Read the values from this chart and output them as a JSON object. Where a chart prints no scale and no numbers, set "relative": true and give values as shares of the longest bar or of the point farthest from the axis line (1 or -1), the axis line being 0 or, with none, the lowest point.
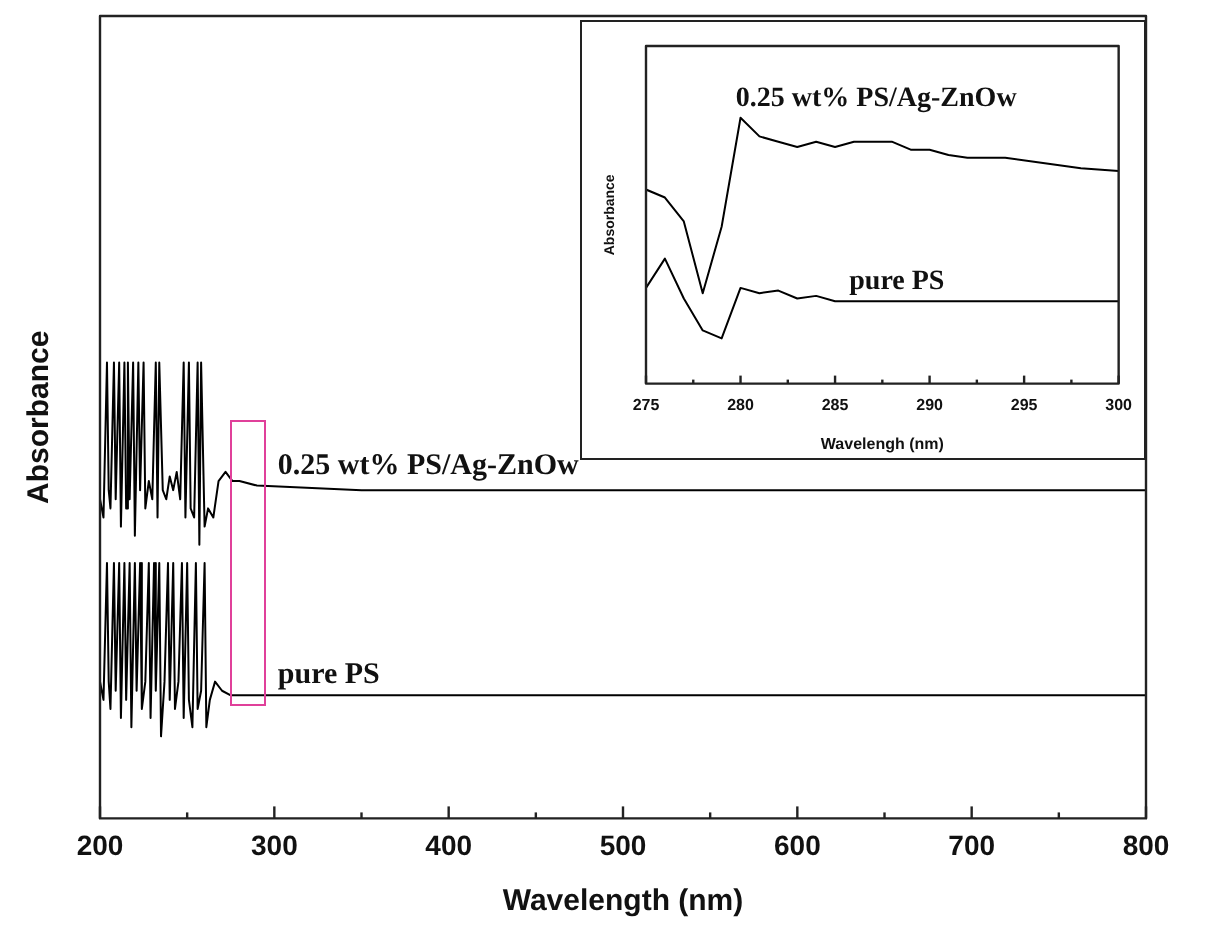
{
  "chart_data": [
    {
      "type": "line",
      "xlabel": "Wavelength (nm)",
      "ylabel": "Absorbance",
      "relative": true,
      "tick_labels": "x",
      "grid": false,
      "legend": false,
      "line_style": "solid",
      "xlim": [
        200,
        800
      ],
      "xticks": [
        200,
        {
          "value": 250,
          "label": null
        },
        300,
        {
          "value": 350,
          "label": null
        },
        400,
        {
          "value": 450,
          "label": null
        },
        500,
        {
          "value": 550,
          "label": null
        },
        600,
        {
          "value": 650,
          "label": null
        },
        700,
        {
          "value": 750,
          "label": null
        },
        800
      ],
      "series": [
        {
          "name": "0.25 wt% PS/Ag-ZnOw",
          "color": "#000000",
          "x": [
            200,
            202,
            204,
            205,
            206,
            208,
            209,
            211,
            212,
            214,
            215,
            216,
            217,
            219,
            220,
            222,
            223,
            225,
            226,
            228,
            230,
            232,
            233,
            234,
            236,
            238,
            240,
            242,
            244,
            246,
            248,
            249,
            251,
            252,
            254,
            256,
            257,
            258,
            260,
            262,
            265,
            268,
            272,
            276,
            280,
            290,
            350,
            450,
            600,
            800
          ],
          "values": [
            0.7,
            0.66,
            1.0,
            0.72,
            0.68,
            1.0,
            0.7,
            1.0,
            0.64,
            1.0,
            0.68,
            1.0,
            0.7,
            1.0,
            0.62,
            1.0,
            0.72,
            1.0,
            0.68,
            0.74,
            0.7,
            1.0,
            0.66,
            1.0,
            0.72,
            0.7,
            0.75,
            0.72,
            0.76,
            0.7,
            1.0,
            0.66,
            1.0,
            0.68,
            0.66,
            1.0,
            0.6,
            1.0,
            0.64,
            0.68,
            0.66,
            0.74,
            0.76,
            0.74,
            0.74,
            0.73,
            0.72,
            0.72,
            0.72,
            0.72
          ]
        },
        {
          "name": "pure PS",
          "color": "#000000",
          "x": [
            200,
            202,
            204,
            205,
            206,
            208,
            209,
            211,
            212,
            214,
            215,
            217,
            218,
            220,
            221,
            223,
            224,
            226,
            228,
            229,
            231,
            232,
            234,
            235,
            237,
            239,
            240,
            242,
            243,
            245,
            247,
            248,
            250,
            251,
            253,
            255,
            256,
            258,
            260,
            261,
            263,
            266,
            270,
            275,
            300,
            800
          ],
          "values": [
            0.3,
            0.26,
            0.56,
            0.3,
            0.24,
            0.56,
            0.28,
            0.56,
            0.22,
            0.56,
            0.26,
            0.56,
            0.2,
            0.56,
            0.28,
            0.56,
            0.24,
            0.3,
            0.56,
            0.22,
            0.56,
            0.28,
            0.56,
            0.18,
            0.3,
            0.56,
            0.26,
            0.56,
            0.24,
            0.3,
            0.56,
            0.22,
            0.56,
            0.26,
            0.2,
            0.56,
            0.24,
            0.28,
            0.56,
            0.2,
            0.26,
            0.3,
            0.28,
            0.27,
            0.27,
            0.27
          ]
        }
      ]
    },
    {
      "type": "line",
      "xlabel": "Wavelengh (nm)",
      "ylabel": "Absorbance",
      "relative": true,
      "tick_labels": "x",
      "grid": false,
      "legend": false,
      "line_style": "solid",
      "xlim": [
        275,
        300
      ],
      "xticks": [
        275,
        {
          "value": 277.5,
          "label": null
        },
        280,
        {
          "value": 282.5,
          "label": null
        },
        285,
        {
          "value": 287.5,
          "label": null
        },
        290,
        {
          "value": 292.5,
          "label": null
        },
        295,
        {
          "value": 297.5,
          "label": null
        },
        300
      ],
      "series": [
        {
          "name": "0.25 wt% PS/Ag-ZnOw",
          "color": "#000000",
          "x": [
            275,
            276,
            277,
            278,
            279,
            280,
            281,
            282,
            283,
            284,
            285,
            286,
            287,
            288,
            289,
            290,
            291,
            292,
            294,
            296,
            298,
            300
          ],
          "values": [
            0.73,
            0.7,
            0.61,
            0.34,
            0.59,
            1.0,
            0.93,
            0.91,
            0.89,
            0.91,
            0.89,
            0.91,
            0.91,
            0.91,
            0.88,
            0.88,
            0.86,
            0.85,
            0.85,
            0.83,
            0.81,
            0.8
          ]
        },
        {
          "name": "pure PS",
          "color": "#000000",
          "x": [
            275,
            276,
            277,
            278,
            279,
            280,
            281,
            282,
            283,
            284,
            285,
            290,
            295,
            300
          ],
          "values": [
            0.36,
            0.47,
            0.32,
            0.2,
            0.17,
            0.36,
            0.34,
            0.35,
            0.32,
            0.33,
            0.31,
            0.31,
            0.31,
            0.31
          ]
        }
      ]
    }
  ]
}
